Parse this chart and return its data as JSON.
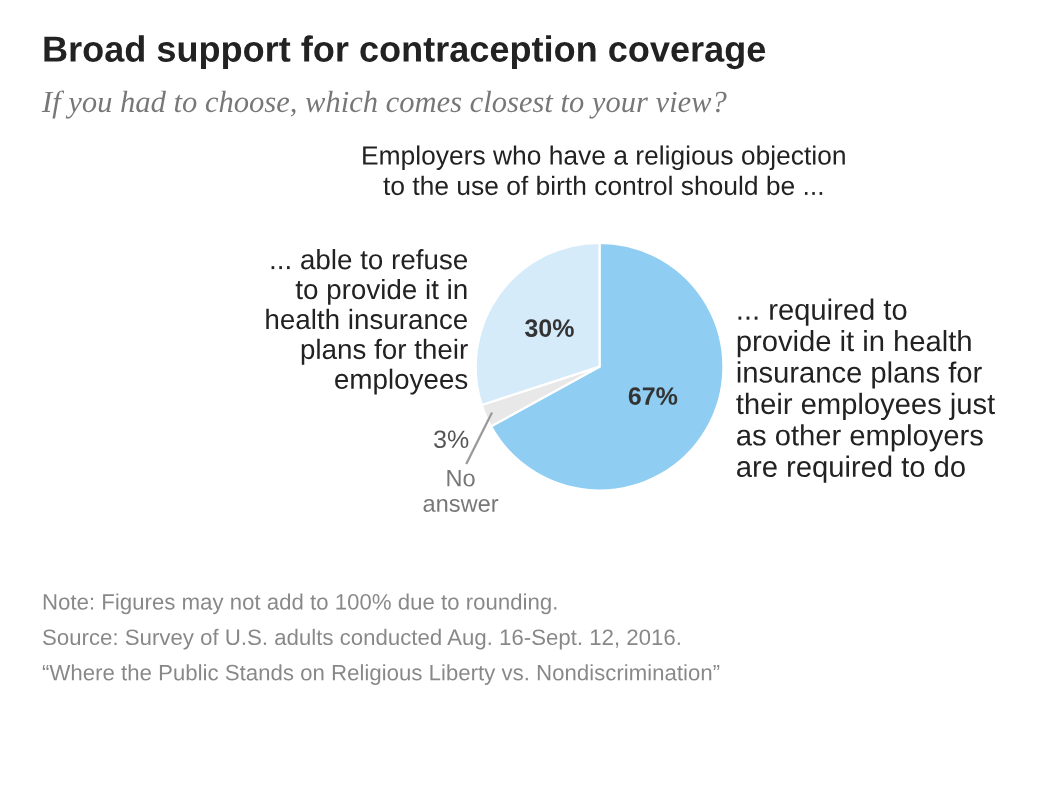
{
  "chart_data": {
    "type": "pie",
    "title": "Broad support for contraception coverage",
    "subtitle": "If you had to choose, which comes closest to your view?",
    "categories": [
      "... required to\nprovide it in health\ninsurance plans for\ntheir employees just\nas other employers\nare required to do",
      "No\nanswer",
      "... able to refuse\nto provide it in\nhealth insurance\nplans for their\nemployees"
    ],
    "values": [
      67,
      3,
      30
    ],
    "value_labels": [
      "67%",
      "3%",
      "30%"
    ],
    "colors": [
      "#8fcdf2",
      "#e8e8e8",
      "#d5ebfa"
    ],
    "annotations": [
      "Employers who have a religious objection\nto the use of birth control should be ...",
      "Note: Figures may not add to 100% due to rounding.",
      "Source: Survey of U.S. adults conducted Aug. 16-Sept. 12, 2016.",
      "“Where the Public Stands on Religious Liberty vs. Nondiscrimination”"
    ]
  }
}
